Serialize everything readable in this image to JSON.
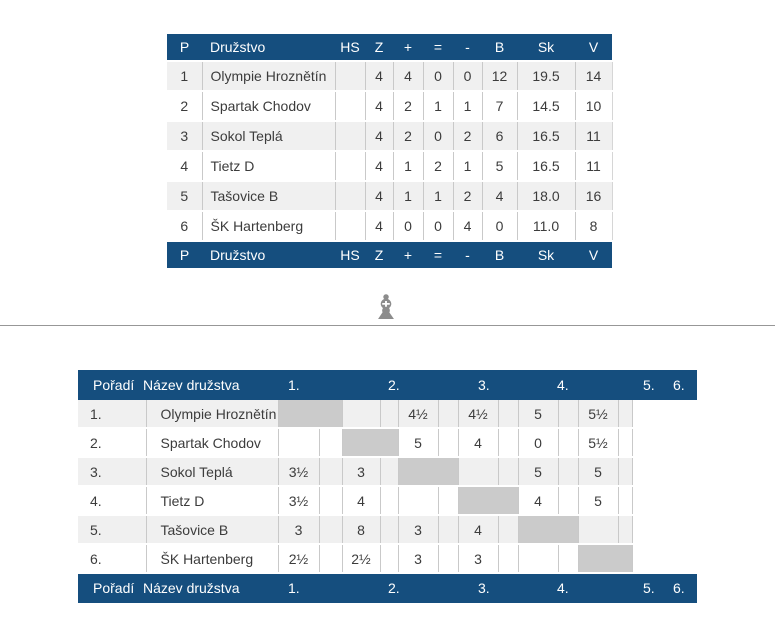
{
  "colors": {
    "header_bg": "#154e7e",
    "header_text": "#ffffff",
    "row_stripe": "#f0f0f0",
    "row_plain": "#ffffff",
    "diagonal_cell": "#cbcbcb",
    "grid_border": "#c9c9c9",
    "body_text": "#3c3c3c",
    "divider_line": "#979797",
    "icon_gray": "#8c8c8c"
  },
  "standings_table": {
    "columns": [
      "P",
      "Družstvo",
      "HS",
      "Z",
      "+",
      "=",
      "-",
      "B",
      "Sk",
      "V"
    ],
    "rows": [
      [
        "1",
        "Olympie Hroznětín",
        "",
        "4",
        "4",
        "0",
        "0",
        "12",
        "19.5",
        "14"
      ],
      [
        "2",
        "Spartak Chodov",
        "",
        "4",
        "2",
        "1",
        "1",
        "7",
        "14.5",
        "10"
      ],
      [
        "3",
        "Sokol Teplá",
        "",
        "4",
        "2",
        "0",
        "2",
        "6",
        "16.5",
        "11"
      ],
      [
        "4",
        "Tietz D",
        "",
        "4",
        "1",
        "2",
        "1",
        "5",
        "16.5",
        "11"
      ],
      [
        "5",
        "Tašovice B",
        "",
        "4",
        "1",
        "1",
        "2",
        "4",
        "18.0",
        "16"
      ],
      [
        "6",
        "ŠK Hartenberg",
        "",
        "4",
        "0",
        "0",
        "4",
        "0",
        "11.0",
        "8"
      ]
    ],
    "footer_columns": [
      "P",
      "Družstvo",
      "HS",
      "Z",
      "+",
      "=",
      "-",
      "B",
      "Sk",
      "V"
    ]
  },
  "divider": {
    "icon": "bishop-icon",
    "glyph": "♝"
  },
  "cross_table": {
    "rank_header": "Pořadí",
    "team_header": "Název družstva",
    "round_labels": [
      "1.",
      "2.",
      "3.",
      "4.",
      "5.",
      "6."
    ],
    "rows": [
      {
        "rank": "1.",
        "team": "Olympie Hroznětín",
        "self": 1,
        "results": [
          "",
          "",
          "4½",
          "4½",
          "5",
          "5½"
        ]
      },
      {
        "rank": "2.",
        "team": "Spartak Chodov",
        "self": 2,
        "results": [
          "",
          "",
          "5",
          "4",
          "0",
          "5½"
        ]
      },
      {
        "rank": "3.",
        "team": "Sokol Teplá",
        "self": 3,
        "results": [
          "3½",
          "3",
          "",
          "",
          "5",
          "5"
        ]
      },
      {
        "rank": "4.",
        "team": "Tietz D",
        "self": 4,
        "results": [
          "3½",
          "4",
          "",
          "",
          "4",
          "5"
        ]
      },
      {
        "rank": "5.",
        "team": "Tašovice B",
        "self": 5,
        "results": [
          "3",
          "8",
          "3",
          "4",
          "",
          ""
        ]
      },
      {
        "rank": "6.",
        "team": "ŠK Hartenberg",
        "self": 6,
        "results": [
          "2½",
          "2½",
          "3",
          "3",
          "",
          ""
        ]
      }
    ]
  }
}
